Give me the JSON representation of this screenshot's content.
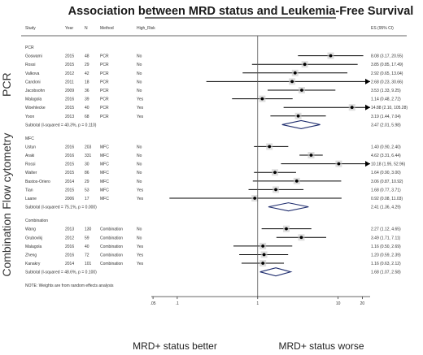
{
  "chart_data": {
    "type": "forest",
    "title": "Association between MRD status and Leukemia-Free Survival",
    "columns": {
      "study": "Study",
      "year": "Year",
      "n": "N",
      "method": "Method",
      "risk": "High_Risk",
      "es": "ES (95% CI)"
    },
    "x_scale": "log",
    "xlim": [
      0.0476,
      25
    ],
    "x_ticks": [
      {
        "value": 0.05,
        "label": ".05"
      },
      {
        "value": 0.1,
        "label": ".1"
      },
      {
        "value": 1,
        "label": "1"
      },
      {
        "value": 10,
        "label": "10"
      },
      {
        "value": 20,
        "label": "20"
      }
    ],
    "groups": [
      {
        "name": "PCR",
        "side_label": "PCR",
        "studies": [
          {
            "study": "Goswami",
            "year": "2015",
            "n": "48",
            "method": "PCR",
            "risk": "No",
            "es": 8.08,
            "lo": 3.17,
            "hi": 20.55,
            "es_text": "8.08 (3.17, 20.55)"
          },
          {
            "study": "Rossi",
            "year": "2015",
            "n": "29",
            "method": "PCR",
            "risk": "No",
            "es": 3.85,
            "lo": 0.85,
            "hi": 17.49,
            "es_text": "3.85 (0.85, 17.49)"
          },
          {
            "study": "Valkova",
            "year": "2012",
            "n": "42",
            "method": "PCR",
            "risk": "No",
            "es": 2.92,
            "lo": 0.65,
            "hi": 13.04,
            "es_text": "2.92 (0.65, 13.04)"
          },
          {
            "study": "Candoni",
            "year": "2011",
            "n": "18",
            "method": "PCR",
            "risk": "No",
            "es": 2.68,
            "lo": 0.23,
            "hi": 30.66,
            "es_text": "2.68 (0.23, 30.66)"
          },
          {
            "study": "Jacobsohn",
            "year": "2009",
            "n": "36",
            "method": "PCR",
            "risk": "No",
            "es": 3.53,
            "lo": 1.33,
            "hi": 9.25,
            "es_text": "3.53 (1.33, 9.25)"
          },
          {
            "study": "Malagola",
            "year": "2016",
            "n": "39",
            "method": "PCR",
            "risk": "Yes",
            "es": 1.14,
            "lo": 0.48,
            "hi": 2.72,
            "es_text": "1.14 (0.48, 2.72)"
          },
          {
            "study": "Woehlecke",
            "year": "2015",
            "n": "40",
            "method": "PCR",
            "risk": "Yes",
            "es": 14.88,
            "lo": 2.1,
            "hi": 105.28,
            "es_text": "14.88 (2.10, 105.28)"
          },
          {
            "study": "Yoon",
            "year": "2013",
            "n": "68",
            "method": "PCR",
            "risk": "Yes",
            "es": 3.19,
            "lo": 1.44,
            "hi": 7.04,
            "es_text": "3.19 (1.44, 7.04)"
          }
        ],
        "subtotal": {
          "label": "Subtotal  (I-squared = 40.3%, p = 0.110)",
          "es": 3.47,
          "lo": 2.01,
          "hi": 5.98,
          "es_text": "3.47 (2.01, 5.98)"
        }
      },
      {
        "name": "MFC",
        "side_label": "Flow cytometry",
        "studies": [
          {
            "study": "Ustun",
            "year": "2016",
            "n": "203",
            "method": "MFC",
            "risk": "No",
            "es": 1.4,
            "lo": 0.9,
            "hi": 2.4,
            "es_text": "1.40 (0.90, 2.40)"
          },
          {
            "study": "Araki",
            "year": "2016",
            "n": "331",
            "method": "MFC",
            "risk": "No",
            "es": 4.62,
            "lo": 3.31,
            "hi": 6.44,
            "es_text": "4.62 (3.31, 6.44)"
          },
          {
            "study": "Rossi",
            "year": "2015",
            "n": "30",
            "method": "MFC",
            "risk": "No",
            "es": 10.18,
            "lo": 1.95,
            "hi": 52.96,
            "es_text": "10.18 (1.95, 52.96)"
          },
          {
            "study": "Walter",
            "year": "2015",
            "n": "86",
            "method": "MFC",
            "risk": "No",
            "es": 1.64,
            "lo": 0.9,
            "hi": 3.0,
            "es_text": "1.64 (0.90, 3.00)"
          },
          {
            "study": "Bastos-Oriero",
            "year": "2014",
            "n": "29",
            "method": "MFC",
            "risk": "No",
            "es": 3.06,
            "lo": 0.87,
            "hi": 10.92,
            "es_text": "3.06 (0.87, 10.92)"
          },
          {
            "study": "Tian",
            "year": "2015",
            "n": "53",
            "method": "MFC",
            "risk": "Yes",
            "es": 1.68,
            "lo": 0.77,
            "hi": 3.71,
            "es_text": "1.68 (0.77, 3.71)"
          },
          {
            "study": "Laane",
            "year": "2006",
            "n": "17",
            "method": "MFC",
            "risk": "Yes",
            "es": 0.92,
            "lo": 0.08,
            "hi": 11.03,
            "es_text": "0.92 (0.08, 11.03)"
          }
        ],
        "subtotal": {
          "label": "Subtotal  (I-squared = 75.1%, p = 0.000)",
          "es": 2.41,
          "lo": 1.36,
          "hi": 4.29,
          "es_text": "2.41 (1.36, 4.29)"
        }
      },
      {
        "name": "Combination",
        "side_label": "Combination",
        "studies": [
          {
            "study": "Wang",
            "year": "2013",
            "n": "130",
            "method": "Combination",
            "risk": "No",
            "es": 2.27,
            "lo": 1.12,
            "hi": 4.65,
            "es_text": "2.27 (1.12, 4.65)"
          },
          {
            "study": "Grubovikj",
            "year": "2012",
            "n": "59",
            "method": "Combination",
            "risk": "No",
            "es": 3.49,
            "lo": 1.71,
            "hi": 7.11,
            "es_text": "3.49 (1.71, 7.11)"
          },
          {
            "study": "Malagola",
            "year": "2016",
            "n": "40",
            "method": "Combination",
            "risk": "Yes",
            "es": 1.16,
            "lo": 0.5,
            "hi": 2.69,
            "es_text": "1.16 (0.50, 2.69)"
          },
          {
            "study": "Zheng",
            "year": "2016",
            "n": "72",
            "method": "Combination",
            "risk": "Yes",
            "es": 1.2,
            "lo": 0.59,
            "hi": 2.39,
            "es_text": "1.20 (0.59, 2.39)"
          },
          {
            "study": "Kanakry",
            "year": "2014",
            "n": "101",
            "method": "Combination",
            "risk": "Yes",
            "es": 1.16,
            "lo": 0.63,
            "hi": 2.12,
            "es_text": "1.16 (0.63, 2.12)"
          }
        ],
        "subtotal": {
          "label": "Subtotal  (I-squared = 48.6%, p = 0.100)",
          "es": 1.68,
          "lo": 1.07,
          "hi": 2.58,
          "es_text": "1.68 (1.07, 2.58)"
        }
      }
    ],
    "note": "NOTE: Weights are from random effects analysis",
    "left_label": "MRD+ status better",
    "right_label": "MRD+ status worse",
    "colors": {
      "diamond": "#1f2d6e",
      "marker": "#000000",
      "line": "#000000",
      "reference": "#555555"
    }
  }
}
